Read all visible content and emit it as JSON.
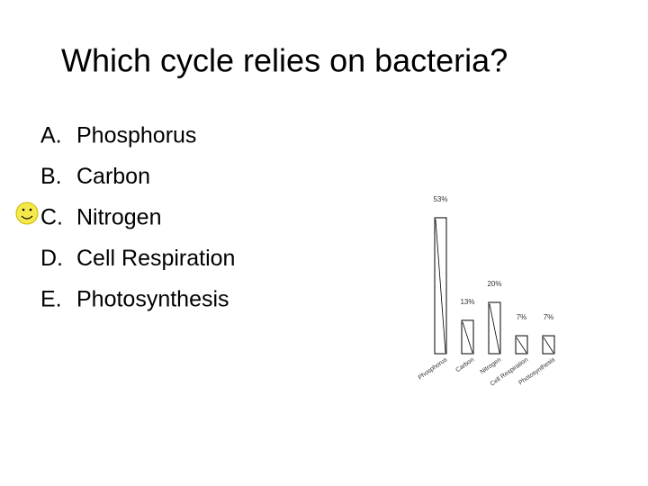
{
  "header": {
    "title": "Which cycle relies on bacteria?"
  },
  "options": [
    {
      "letter": "A.",
      "text": "Phosphorus"
    },
    {
      "letter": "B.",
      "text": "Carbon"
    },
    {
      "letter": "C.",
      "text": "Nitrogen"
    },
    {
      "letter": "D.",
      "text": "Cell Respiration"
    },
    {
      "letter": "E.",
      "text": "Photosynthesis"
    }
  ],
  "chart_data": {
    "type": "bar",
    "categories": [
      "Phosphorus",
      "Carbon",
      "Nitrogen",
      "Cell Respiration",
      "Photosynthesis"
    ],
    "values": [
      53,
      13,
      20,
      7,
      7
    ],
    "value_labels": [
      "53%",
      "13%",
      "20%",
      "7%",
      "7%"
    ],
    "color": "#ffffff"
  }
}
